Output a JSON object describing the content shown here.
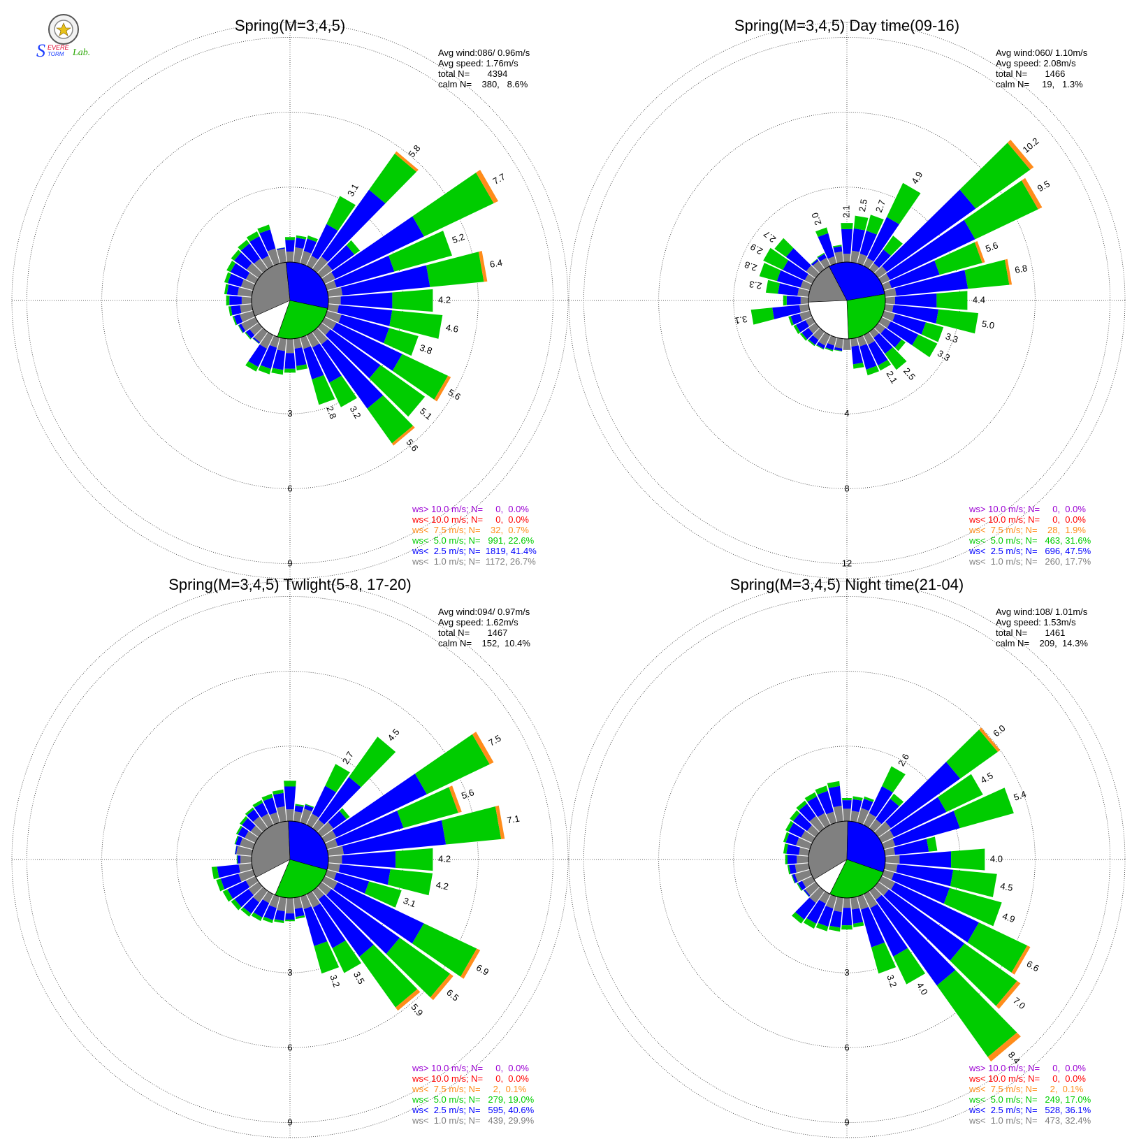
{
  "logo": {
    "text_s": "S",
    "text_evere": "EVERE",
    "text_torm": "TORM",
    "text_lab": "Lab.",
    "color_blue": "#1a3cff",
    "color_red": "#e0002a",
    "color_green": "#2fa80a"
  },
  "colors": {
    "ws_gt_10": "#9b00d3",
    "ws_lt_10": "#ff0000",
    "ws_lt_7_5": "#ff8c1a",
    "ws_lt_5": "#00cc00",
    "ws_lt_2_5": "#0000ff",
    "ws_lt_1": "#808080"
  },
  "chart_data": [
    {
      "type": "windrose",
      "title": "Spring(M=3,4,5)",
      "stats": [
        "Avg wind:086/ 0.96m/s",
        "Avg speed: 1.76m/s",
        "total N=       4394",
        "calm N=    380,   8.6%"
      ],
      "ring_labels": [
        "3",
        "6",
        "9"
      ],
      "rmax": 9.6,
      "sectors": 36,
      "pie_gray_fraction": 0.3,
      "labeled_bars": [
        {
          "dir": 30,
          "value": 3.1,
          "label": "3.1"
        },
        {
          "dir": 40,
          "value": 5.8,
          "label": "5.8"
        },
        {
          "dir": 60,
          "value": 7.7,
          "label": "7.7"
        },
        {
          "dir": 70,
          "value": 5.2,
          "label": "5.2"
        },
        {
          "dir": 80,
          "value": 6.4,
          "label": "6.4"
        },
        {
          "dir": 90,
          "value": 4.2,
          "label": "4.2"
        },
        {
          "dir": 100,
          "value": 4.6,
          "label": "4.6"
        },
        {
          "dir": 110,
          "value": 3.8,
          "label": "3.8"
        },
        {
          "dir": 120,
          "value": 5.6,
          "label": "5.6"
        },
        {
          "dir": 130,
          "value": 5.1,
          "label": "5.1"
        },
        {
          "dir": 140,
          "value": 5.6,
          "label": "5.6"
        },
        {
          "dir": 150,
          "value": 3.2,
          "label": "3.2"
        },
        {
          "dir": 160,
          "value": 2.8,
          "label": "2.8"
        }
      ],
      "legend": [
        {
          "label": "ws> 10.0 m/s; N=     0,  0.0%",
          "color": "#9b00d3"
        },
        {
          "label": "ws< 10.0 m/s; N=     0,  0.0%",
          "color": "#ff0000"
        },
        {
          "label": "ws<  7.5 m/s; N=    32,  0.7%",
          "color": "#ff8c1a"
        },
        {
          "label": "ws<  5.0 m/s; N=   991, 22.6%",
          "color": "#00cc00"
        },
        {
          "label": "ws<  2.5 m/s; N=  1819, 41.4%",
          "color": "#0000ff"
        },
        {
          "label": "ws<  1.0 m/s; N=  1172, 26.7%",
          "color": "#808080"
        }
      ]
    },
    {
      "type": "windrose",
      "title": "Spring(M=3,4,5) Day time(09-16)",
      "stats": [
        "Avg wind:060/ 1.10m/s",
        "Avg speed: 2.08m/s",
        "total N=       1466",
        "calm N=     19,   1.3%"
      ],
      "ring_labels": [
        "4",
        "8",
        "12"
      ],
      "rmax": 12.8,
      "sectors": 36,
      "pie_gray_fraction": 0.18,
      "labeled_bars": [
        {
          "dir": 0,
          "value": 2.1,
          "label": "2.1"
        },
        {
          "dir": 10,
          "value": 2.5,
          "label": "2.5"
        },
        {
          "dir": 20,
          "value": 2.7,
          "label": "2.7"
        },
        {
          "dir": 30,
          "value": 4.9,
          "label": "4.9"
        },
        {
          "dir": 50,
          "value": 10.2,
          "label": "10.2"
        },
        {
          "dir": 60,
          "value": 9.5,
          "label": "9.5"
        },
        {
          "dir": 70,
          "value": 5.6,
          "label": "5.6"
        },
        {
          "dir": 80,
          "value": 6.8,
          "label": "6.8"
        },
        {
          "dir": 90,
          "value": 4.4,
          "label": "4.4"
        },
        {
          "dir": 100,
          "value": 5.0,
          "label": "5.0"
        },
        {
          "dir": 110,
          "value": 3.3,
          "label": "3.3"
        },
        {
          "dir": 120,
          "value": 3.3,
          "label": "3.3"
        },
        {
          "dir": 140,
          "value": 2.5,
          "label": "2.5"
        },
        {
          "dir": 150,
          "value": 2.1,
          "label": "2.1"
        },
        {
          "dir": 260,
          "value": 3.1,
          "label": "3.1"
        },
        {
          "dir": 280,
          "value": 2.3,
          "label": "2.3"
        },
        {
          "dir": 290,
          "value": 2.8,
          "label": "2.8"
        },
        {
          "dir": 300,
          "value": 2.9,
          "label": "2.9"
        },
        {
          "dir": 310,
          "value": 2.7,
          "label": "2.7"
        },
        {
          "dir": 340,
          "value": 2.0,
          "label": "2.0"
        }
      ],
      "legend": [
        {
          "label": "ws> 10.0 m/s; N=     0,  0.0%",
          "color": "#9b00d3"
        },
        {
          "label": "ws< 10.0 m/s; N=     0,  0.0%",
          "color": "#ff0000"
        },
        {
          "label": "ws<  7.5 m/s; N=    28,  1.9%",
          "color": "#ff8c1a"
        },
        {
          "label": "ws<  5.0 m/s; N=   463, 31.6%",
          "color": "#00cc00"
        },
        {
          "label": "ws<  2.5 m/s; N=   696, 47.5%",
          "color": "#0000ff"
        },
        {
          "label": "ws<  1.0 m/s; N=   260, 17.7%",
          "color": "#808080"
        }
      ]
    },
    {
      "type": "windrose",
      "title": "Spring(M=3,4,5) Twlight(5-8, 17-20)",
      "stats": [
        "Avg wind:094/ 0.97m/s",
        "Avg speed: 1.62m/s",
        "total N=       1467",
        "calm N=    152,  10.4%"
      ],
      "ring_labels": [
        "3",
        "6",
        "9"
      ],
      "rmax": 9.6,
      "sectors": 36,
      "pie_gray_fraction": 0.32,
      "labeled_bars": [
        {
          "dir": 30,
          "value": 2.7,
          "label": "2.7"
        },
        {
          "dir": 40,
          "value": 4.5,
          "label": "4.5"
        },
        {
          "dir": 60,
          "value": 7.5,
          "label": "7.5"
        },
        {
          "dir": 70,
          "value": 5.6,
          "label": "5.6"
        },
        {
          "dir": 80,
          "value": 7.1,
          "label": "7.1"
        },
        {
          "dir": 90,
          "value": 4.2,
          "label": "4.2"
        },
        {
          "dir": 100,
          "value": 4.2,
          "label": "4.2"
        },
        {
          "dir": 110,
          "value": 3.1,
          "label": "3.1"
        },
        {
          "dir": 120,
          "value": 6.9,
          "label": "6.9"
        },
        {
          "dir": 130,
          "value": 6.5,
          "label": "6.5"
        },
        {
          "dir": 140,
          "value": 5.9,
          "label": "5.9"
        },
        {
          "dir": 150,
          "value": 3.5,
          "label": "3.5"
        },
        {
          "dir": 160,
          "value": 3.2,
          "label": "3.2"
        }
      ],
      "legend": [
        {
          "label": "ws> 10.0 m/s; N=     0,  0.0%",
          "color": "#9b00d3"
        },
        {
          "label": "ws< 10.0 m/s; N=     0,  0.0%",
          "color": "#ff0000"
        },
        {
          "label": "ws<  7.5 m/s; N=     2,  0.1%",
          "color": "#ff8c1a"
        },
        {
          "label": "ws<  5.0 m/s; N=   279, 19.0%",
          "color": "#00cc00"
        },
        {
          "label": "ws<  2.5 m/s; N=   595, 40.6%",
          "color": "#0000ff"
        },
        {
          "label": "ws<  1.0 m/s; N=   439, 29.9%",
          "color": "#808080"
        }
      ]
    },
    {
      "type": "windrose",
      "title": "Spring(M=3,4,5) Night time(21-04)",
      "stats": [
        "Avg wind:108/ 1.01m/s",
        "Avg speed: 1.53m/s",
        "total N=       1461",
        "calm N=    209,  14.3%"
      ],
      "ring_labels": [
        "3",
        "6",
        "9"
      ],
      "rmax": 9.6,
      "sectors": 36,
      "pie_gray_fraction": 0.34,
      "labeled_bars": [
        {
          "dir": 30,
          "value": 2.6,
          "label": "2.6"
        },
        {
          "dir": 50,
          "value": 6.0,
          "label": "6.0"
        },
        {
          "dir": 60,
          "value": 4.5,
          "label": "4.5"
        },
        {
          "dir": 70,
          "value": 5.4,
          "label": "5.4"
        },
        {
          "dir": 90,
          "value": 4.0,
          "label": "4.0"
        },
        {
          "dir": 100,
          "value": 4.5,
          "label": "4.5"
        },
        {
          "dir": 110,
          "value": 4.9,
          "label": "4.9"
        },
        {
          "dir": 120,
          "value": 6.6,
          "label": "6.6"
        },
        {
          "dir": 130,
          "value": 7.0,
          "label": "7.0"
        },
        {
          "dir": 140,
          "value": 8.4,
          "label": "8.4"
        },
        {
          "dir": 150,
          "value": 4.0,
          "label": "4.0"
        },
        {
          "dir": 160,
          "value": 3.2,
          "label": "3.2"
        }
      ],
      "legend": [
        {
          "label": "ws> 10.0 m/s; N=     0,  0.0%",
          "color": "#9b00d3"
        },
        {
          "label": "ws< 10.0 m/s; N=     0,  0.0%",
          "color": "#ff0000"
        },
        {
          "label": "ws<  7.5 m/s; N=     2,  0.1%",
          "color": "#ff8c1a"
        },
        {
          "label": "ws<  5.0 m/s; N=   249, 17.0%",
          "color": "#00cc00"
        },
        {
          "label": "ws<  2.5 m/s; N=   528, 36.1%",
          "color": "#0000ff"
        },
        {
          "label": "ws<  1.0 m/s; N=   473, 32.4%",
          "color": "#808080"
        }
      ]
    }
  ]
}
